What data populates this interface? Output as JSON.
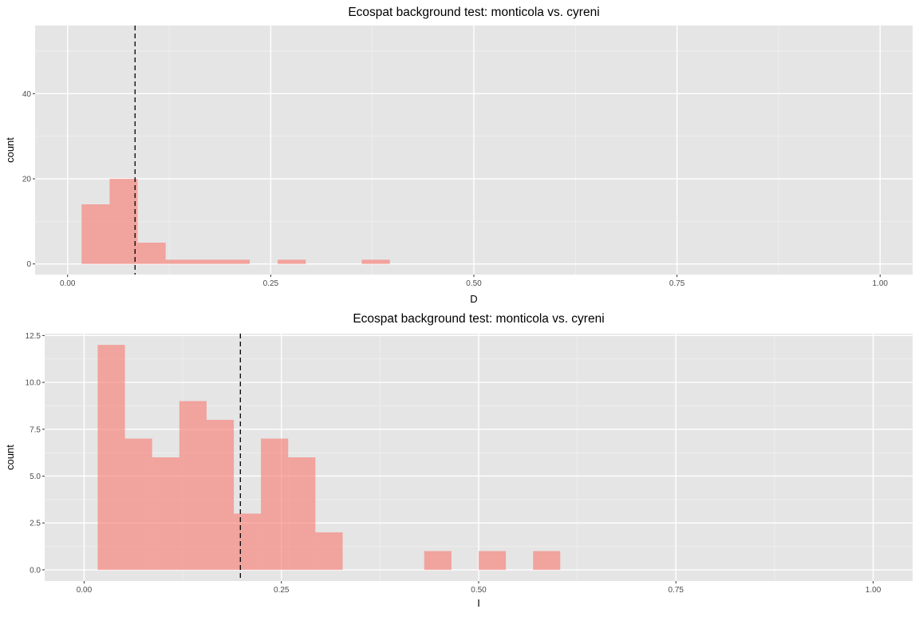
{
  "chart_data": [
    {
      "type": "bar",
      "title": "Ecospat background test: monticola vs. cyreni",
      "xlabel": "D",
      "ylabel": "count",
      "xlim": [
        -0.04,
        1.04
      ],
      "ylim": [
        -2.5,
        56
      ],
      "x_ticks": [
        0.0,
        0.25,
        0.5,
        0.75,
        1.0
      ],
      "x_tick_labels": [
        "0.00",
        "0.25",
        "0.50",
        "0.75",
        "1.00"
      ],
      "y_ticks": [
        0,
        20,
        40
      ],
      "y_tick_labels": [
        "0",
        "20",
        "40"
      ],
      "bin_width": 0.0345,
      "bins": [
        {
          "start": 0.0172,
          "end": 0.0517,
          "count": 14
        },
        {
          "start": 0.0517,
          "end": 0.0862,
          "count": 20
        },
        {
          "start": 0.0862,
          "end": 0.1207,
          "count": 5
        },
        {
          "start": 0.1207,
          "end": 0.1552,
          "count": 1
        },
        {
          "start": 0.1552,
          "end": 0.1897,
          "count": 1
        },
        {
          "start": 0.1897,
          "end": 0.2241,
          "count": 1
        },
        {
          "start": 0.2586,
          "end": 0.2931,
          "count": 1
        },
        {
          "start": 0.3621,
          "end": 0.3966,
          "count": 1
        }
      ],
      "vline": 0.083,
      "bar_color": "#f8766d",
      "bar_opacity": 0.6,
      "panel_background": "#e5e5e5",
      "grid": true
    },
    {
      "type": "bar",
      "title": "Ecospat background test: monticola vs. cyreni",
      "xlabel": "I",
      "ylabel": "count",
      "xlim": [
        -0.05,
        1.05
      ],
      "ylim": [
        -0.6,
        12.6
      ],
      "x_ticks": [
        0.0,
        0.25,
        0.5,
        0.75,
        1.0
      ],
      "x_tick_labels": [
        "0.00",
        "0.25",
        "0.50",
        "0.75",
        "1.00"
      ],
      "y_ticks": [
        0,
        2.5,
        5,
        7.5,
        10,
        12.5
      ],
      "y_tick_labels": [
        "0.0",
        "2.5",
        "5.0",
        "7.5",
        "10.0",
        "12.5"
      ],
      "bin_width": 0.0345,
      "bins": [
        {
          "start": 0.0172,
          "end": 0.0517,
          "count": 12
        },
        {
          "start": 0.0517,
          "end": 0.0862,
          "count": 7
        },
        {
          "start": 0.0862,
          "end": 0.1207,
          "count": 6
        },
        {
          "start": 0.1207,
          "end": 0.1552,
          "count": 9
        },
        {
          "start": 0.1552,
          "end": 0.1897,
          "count": 8
        },
        {
          "start": 0.1897,
          "end": 0.2241,
          "count": 3
        },
        {
          "start": 0.2241,
          "end": 0.2586,
          "count": 7
        },
        {
          "start": 0.2586,
          "end": 0.2931,
          "count": 6
        },
        {
          "start": 0.2931,
          "end": 0.3276,
          "count": 2
        },
        {
          "start": 0.431,
          "end": 0.4655,
          "count": 1
        },
        {
          "start": 0.5,
          "end": 0.5345,
          "count": 1
        },
        {
          "start": 0.569,
          "end": 0.6034,
          "count": 1
        }
      ],
      "vline": 0.198,
      "bar_color": "#f8766d",
      "bar_opacity": 0.6,
      "panel_background": "#e5e5e5",
      "grid": true
    }
  ]
}
